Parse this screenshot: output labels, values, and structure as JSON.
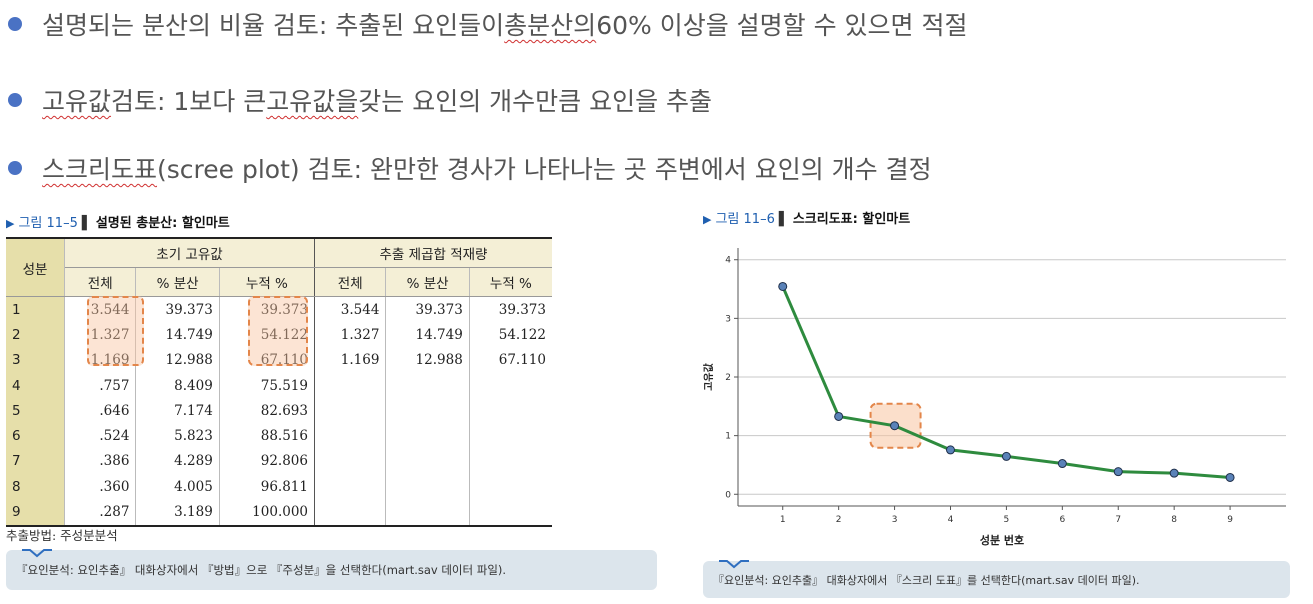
{
  "bullets": [
    {
      "pre": "설명되는 분산의 비율 검토: 추출된 요인들이 ",
      "mark": "총분산의",
      "post": " 60% 이상을 설명할 수 있으면 적절"
    },
    {
      "pre": "",
      "mark": "고유값",
      "mid": " 검토: 1보다 큰 ",
      "mark2": "고유값을",
      "post": " 갖는 요인의 개수만큼 요인을 추출"
    },
    {
      "pre": "",
      "mark": "스크리도표",
      "post": "(scree plot) 검토: 완만한 경사가 나타나는 곳 주변에서 요인의 개수 결정"
    }
  ],
  "figure1": {
    "number": "그림 11–5",
    "title": "설명된 총분산: 할인마트",
    "group_headers": [
      "초기 고유값",
      "추출 제곱합 적재량"
    ],
    "row_header": "성분",
    "columns": [
      "전체",
      "% 분산",
      "누적 %",
      "전체",
      "% 분산",
      "누적 %"
    ],
    "rows": [
      [
        "1",
        "3.544",
        "39.373",
        "39.373",
        "3.544",
        "39.373",
        "39.373"
      ],
      [
        "2",
        "1.327",
        "14.749",
        "54.122",
        "1.327",
        "14.749",
        "54.122"
      ],
      [
        "3",
        "1.169",
        "12.988",
        "67.110",
        "1.169",
        "12.988",
        "67.110"
      ],
      [
        "4",
        ".757",
        "8.409",
        "75.519",
        "",
        "",
        ""
      ],
      [
        "5",
        ".646",
        "7.174",
        "82.693",
        "",
        "",
        ""
      ],
      [
        "6",
        ".524",
        "5.823",
        "88.516",
        "",
        "",
        ""
      ],
      [
        "7",
        ".386",
        "4.289",
        "92.806",
        "",
        "",
        ""
      ],
      [
        "8",
        ".360",
        "4.005",
        "96.811",
        "",
        "",
        ""
      ],
      [
        "9",
        ".287",
        "3.189",
        "100.000",
        "",
        "",
        ""
      ]
    ],
    "footnote": "추출방법: 주성분분석",
    "instruction": "『요인분석: 요인추출』 대화상자에서 『방법』으로 『주성분』을 선택한다(mart.sav 데이터 파일)."
  },
  "figure2": {
    "number": "그림 11–6",
    "title": "스크리도표: 할인마트",
    "instruction": "『요인분석: 요인추출』 대화상자에서 『스크리 도표』를 선택한다(mart.sav 데이터 파일)."
  },
  "chart_data": [
    {
      "type": "table",
      "title": "설명된 총분산: 할인마트",
      "columns": [
        "성분",
        "초기 고유값 전체",
        "초기 고유값 % 분산",
        "초기 고유값 누적 %",
        "추출 제곱합 적재량 전체",
        "추출 제곱합 적재량 % 분산",
        "추출 제곱합 적재량 누적 %"
      ],
      "highlighted_rows": [
        1,
        2,
        3
      ]
    },
    {
      "type": "line",
      "title": "스크리도표: 할인마트",
      "xlabel": "성분 번호",
      "ylabel": "고유값",
      "x": [
        1,
        2,
        3,
        4,
        5,
        6,
        7,
        8,
        9
      ],
      "y": [
        3.544,
        1.327,
        1.169,
        0.757,
        0.646,
        0.524,
        0.386,
        0.36,
        0.287
      ],
      "xlim": [
        0.2,
        10
      ],
      "ylim": [
        -0.2,
        4.2
      ],
      "yticks": [
        0,
        1,
        2,
        3,
        4
      ],
      "grid": true,
      "highlight_x": 3,
      "line_color": "#2e8b3e",
      "marker_color": "#5a82b8",
      "highlight_color": "#e3864a"
    }
  ]
}
